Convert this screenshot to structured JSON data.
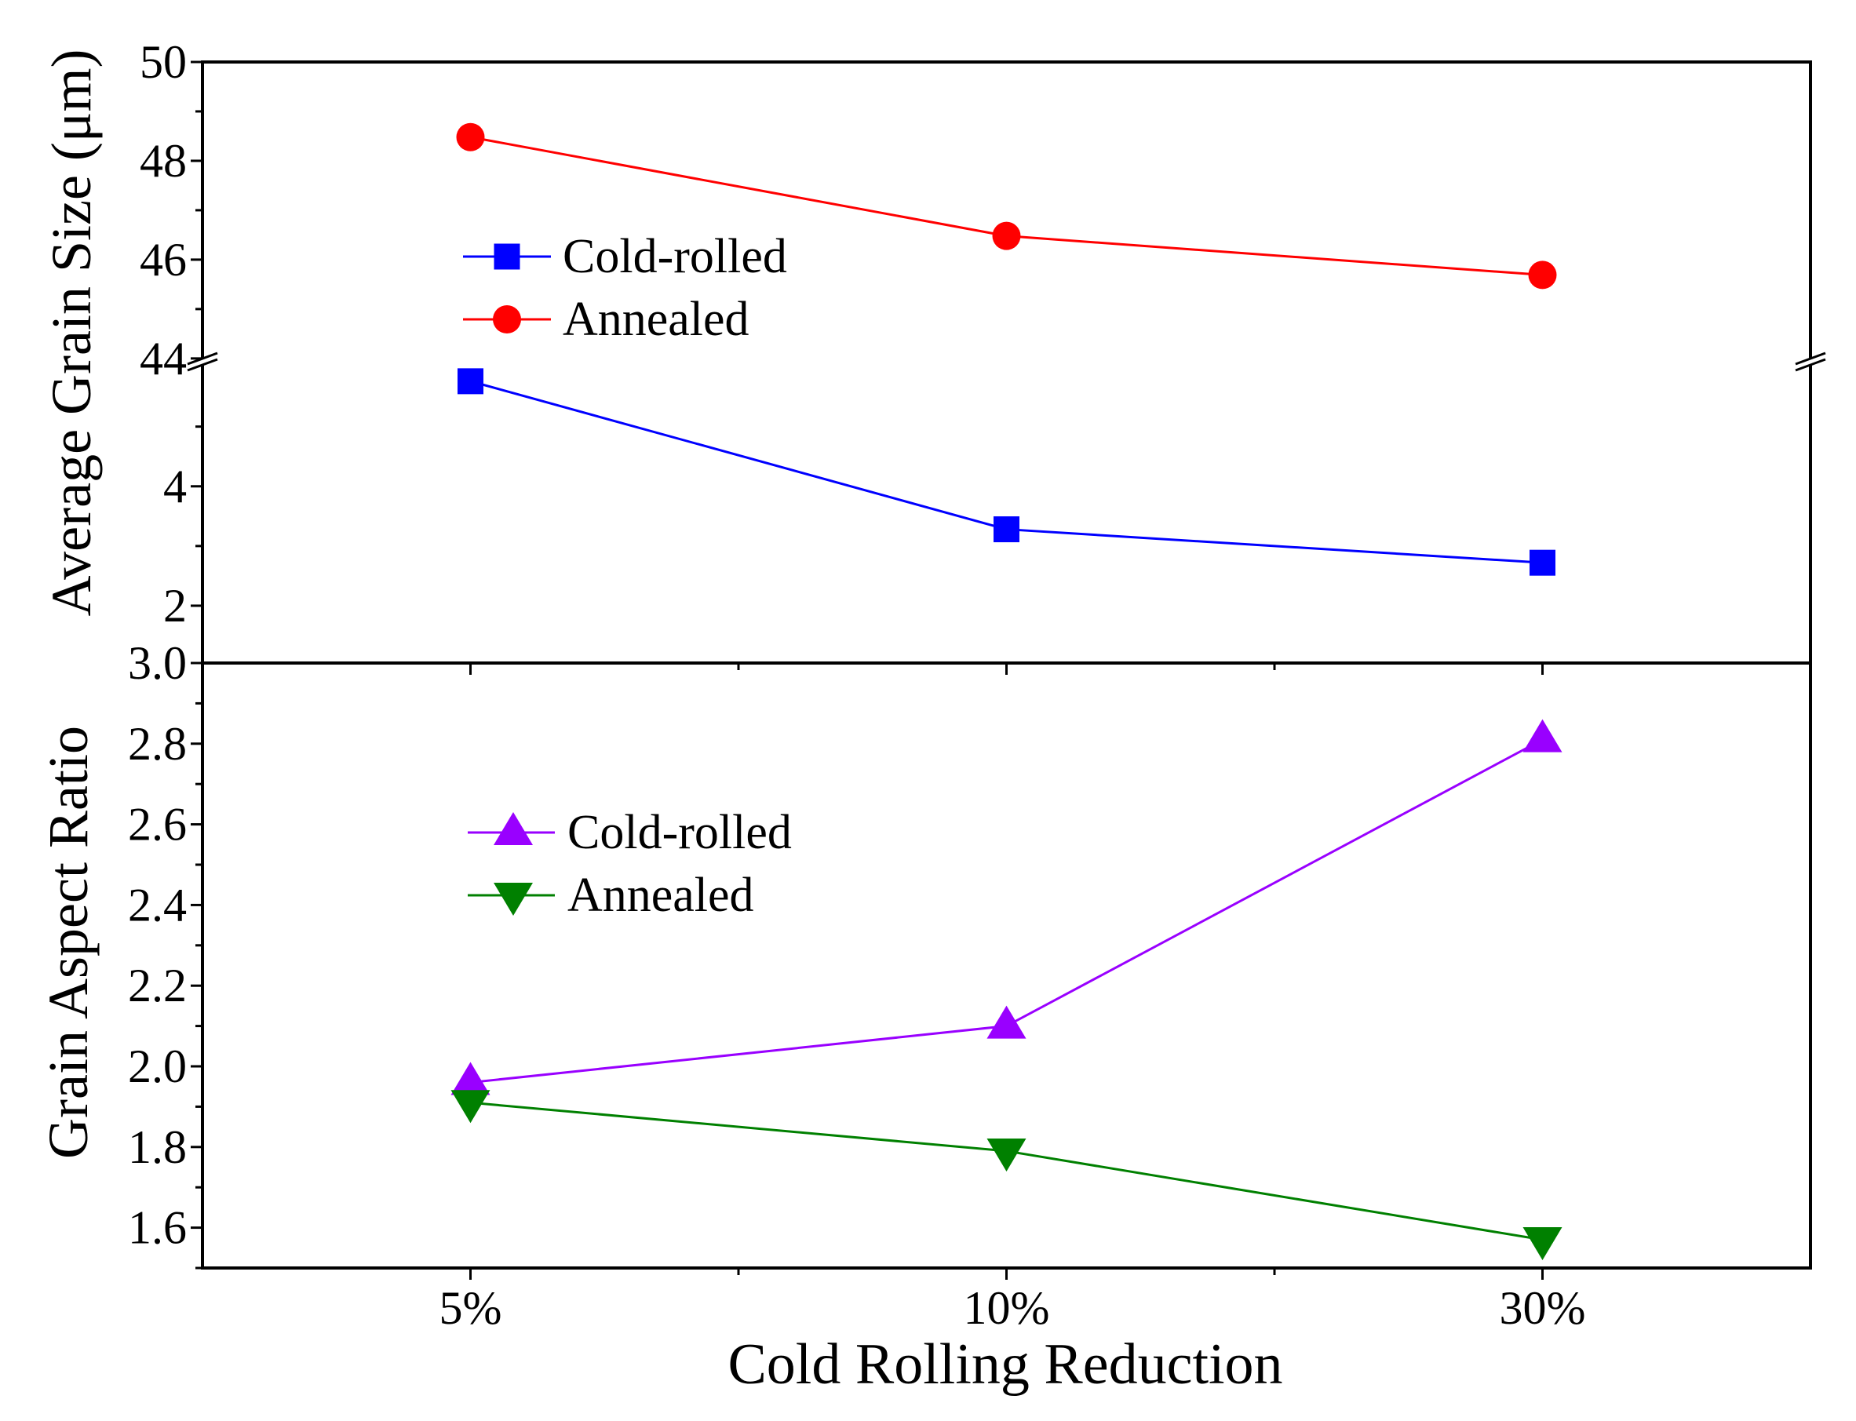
{
  "chart_data": {
    "type": "line",
    "categories": [
      "5%",
      "10%",
      "30%"
    ],
    "xlabel": "Cold Rolling Reduction",
    "panels": [
      {
        "ylabel": "Average Grain Size (μm)",
        "broken_axis": true,
        "y_segments": [
          [
            1.04,
            6.1
          ],
          [
            43.95,
            50
          ]
        ],
        "yticks": [
          2,
          4,
          44,
          46,
          48,
          50
        ],
        "ytick_labels": [
          "2",
          "4",
          "44",
          "46",
          "48",
          "50"
        ],
        "legend_position": "upper-left",
        "series": [
          {
            "name": "Cold-rolled",
            "color": "#0000FF",
            "marker": "square",
            "values": [
              5.76,
              3.28,
              2.72
            ]
          },
          {
            "name": "Annealed",
            "color": "#FF0000",
            "marker": "circle",
            "values": [
              48.48,
              46.48,
              45.69
            ]
          }
        ]
      },
      {
        "ylabel": "Grain Aspect Ratio",
        "ylim": [
          1.5,
          3.0
        ],
        "yticks": [
          1.6,
          1.8,
          2.0,
          2.2,
          2.4,
          2.6,
          2.8,
          3.0
        ],
        "ytick_labels": [
          "1.6",
          "1.8",
          "2.0",
          "2.2",
          "2.4",
          "2.6",
          "2.8",
          "3.0"
        ],
        "legend_position": "center-left",
        "series": [
          {
            "name": "Cold-rolled",
            "color": "#9900FF",
            "marker": "triangle-up",
            "values": [
              1.96,
              2.1,
              2.81
            ]
          },
          {
            "name": "Annealed",
            "color": "#008000",
            "marker": "triangle-down",
            "values": [
              1.91,
              1.79,
              1.57
            ]
          }
        ]
      }
    ]
  }
}
